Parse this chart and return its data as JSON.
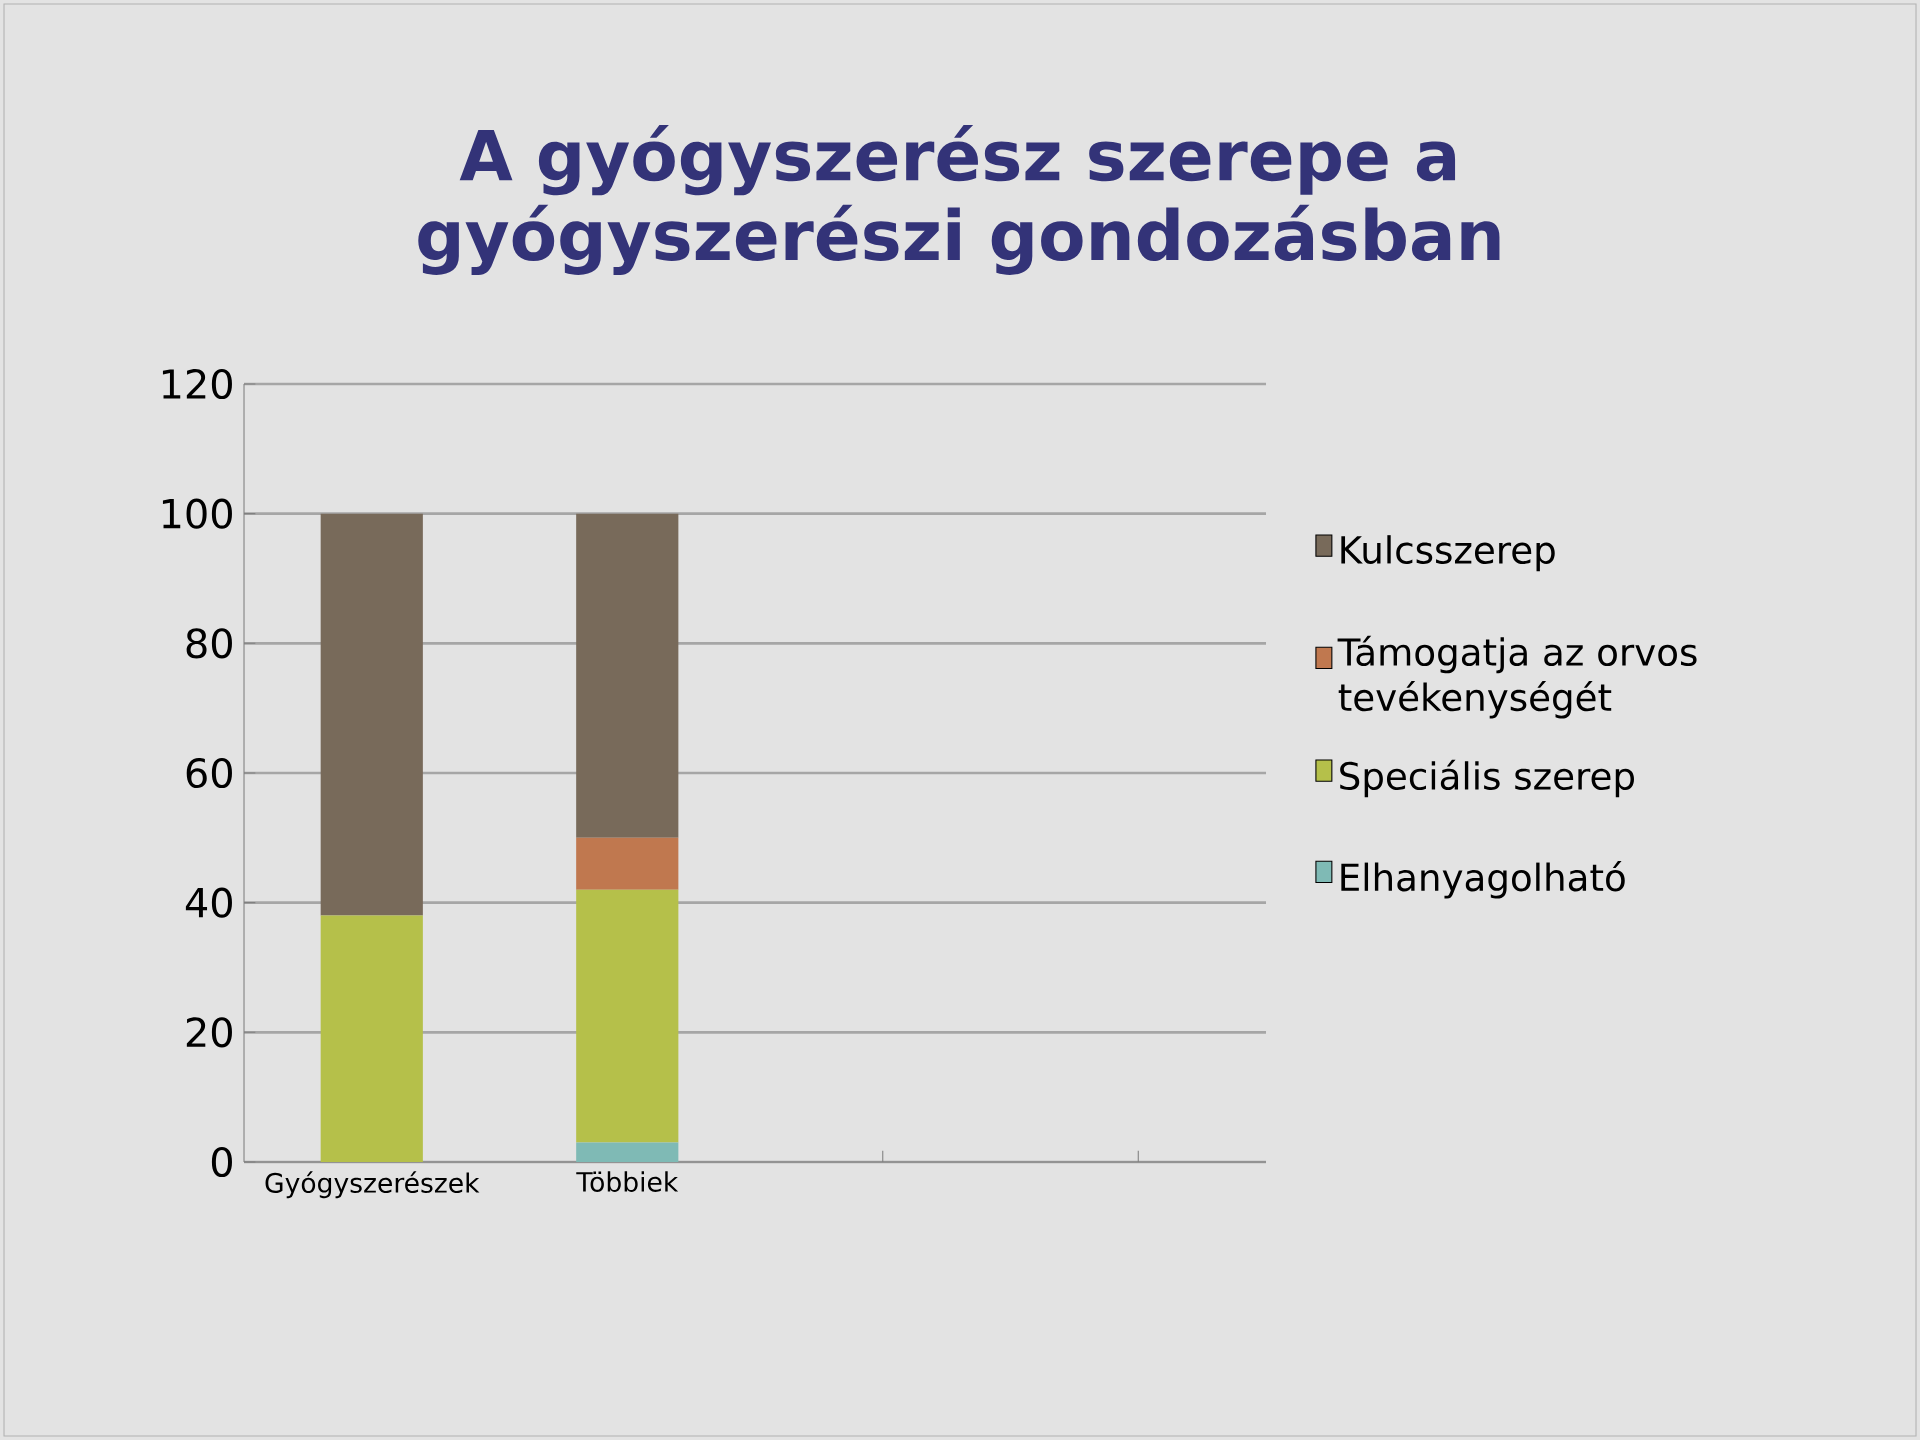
{
  "chart_data": {
    "type": "bar",
    "stacked": true,
    "title": "A gyógyszerész szerepe a gyógyszerészi gondozásban",
    "categories": [
      "Gyógyszerészek",
      "Többiek",
      null,
      null
    ],
    "series": [
      {
        "name": "Elhanyagolható",
        "color": "#7fbab5",
        "values": [
          0,
          3,
          null,
          null
        ]
      },
      {
        "name": "Speciális szerep",
        "color": "#b5c04a",
        "values": [
          38,
          39,
          null,
          null
        ]
      },
      {
        "name": "Támogatja az orvos tevékenységét",
        "color": "#c0784f",
        "values": [
          0,
          8,
          null,
          null
        ]
      },
      {
        "name": "Kulcsszerep",
        "color": "#786a5a",
        "values": [
          62,
          50,
          null,
          null
        ]
      }
    ],
    "ylim": [
      0,
      120
    ],
    "yticks": [
      0,
      20,
      40,
      60,
      80,
      100,
      120
    ],
    "grid": "y",
    "legend": "right"
  }
}
